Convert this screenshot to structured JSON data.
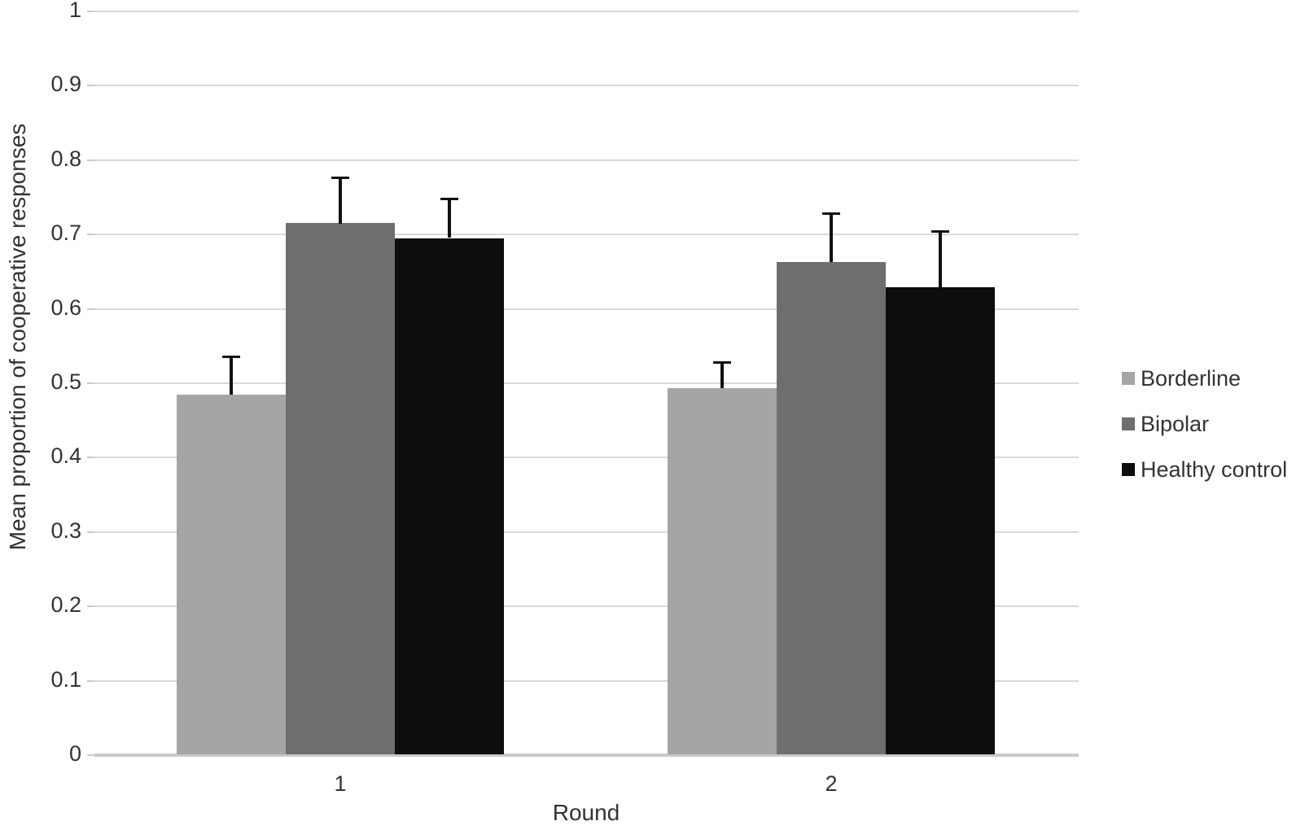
{
  "chart_data": {
    "type": "bar",
    "title": "",
    "xlabel": "Round",
    "ylabel": "Mean proportion  of cooperative responses",
    "categories": [
      "1",
      "2"
    ],
    "series": [
      {
        "name": "Borderline",
        "color": "#a5a5a5",
        "values": [
          0.484,
          0.492
        ],
        "errors_upper": [
          0.052,
          0.036
        ]
      },
      {
        "name": "Bipolar",
        "color": "#6e6e6e",
        "values": [
          0.714,
          0.662
        ],
        "errors_upper": [
          0.063,
          0.067
        ]
      },
      {
        "name": "Healthy control",
        "color": "#0d0d0d",
        "values": [
          0.694,
          0.628
        ],
        "errors_upper": [
          0.054,
          0.077
        ]
      }
    ],
    "ylim": [
      0,
      1
    ],
    "ytick_step": 0.1,
    "ytick_labels": [
      "1",
      "0.9",
      "0.8",
      "0.7",
      "0.6",
      "0.5",
      "0.4",
      "0.3",
      "0.2",
      "0.1",
      "0"
    ],
    "grid": true,
    "legend_position": "right",
    "error_bar_color": "#111111",
    "gridline_color": "#d9d9d9",
    "axis_line_color": "#c9c9c9",
    "text_color": "#333333"
  }
}
